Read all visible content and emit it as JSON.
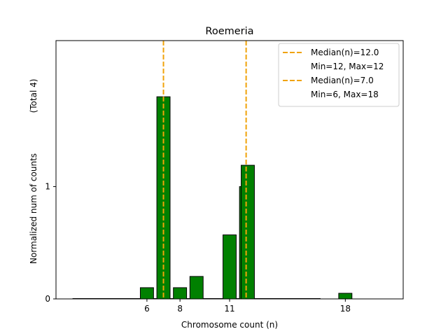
{
  "chart_data": {
    "type": "bar",
    "title": "Roemeria",
    "xlabel": "Chromosome count (n)",
    "ylabel": "Normalized num of counts",
    "ylabel_note": "(Total 4)",
    "xlim": [
      0.5,
      21.5
    ],
    "ylim": [
      0,
      2.3
    ],
    "x_ticks": [
      6,
      8,
      11,
      18
    ],
    "y_ticks": [
      0,
      1
    ],
    "bar_color": "#008000",
    "bar_edge": "#000000",
    "median_color": "#f0a30a",
    "series": [
      {
        "name": "green-bars",
        "bars": [
          {
            "x": 6,
            "value": 0.1
          },
          {
            "x": 7,
            "value": 1.8
          },
          {
            "x": 8,
            "value": 0.1
          },
          {
            "x": 9,
            "value": 0.2
          },
          {
            "x": 11,
            "value": 0.57
          },
          {
            "x": 12,
            "value": 1.0
          },
          {
            "x": 12.1,
            "value": 1.19
          },
          {
            "x": 18,
            "value": 0.05
          }
        ]
      }
    ],
    "flat_segment": {
      "x_start": 1.5,
      "x_end": 16.5,
      "value": 0
    },
    "medians": [
      {
        "x": 12.0,
        "label": "Median(n)=12.0",
        "range": "Min=12, Max=12"
      },
      {
        "x": 7.0,
        "label": "Median(n)=7.0",
        "range": "Min=6, Max=18"
      }
    ]
  }
}
